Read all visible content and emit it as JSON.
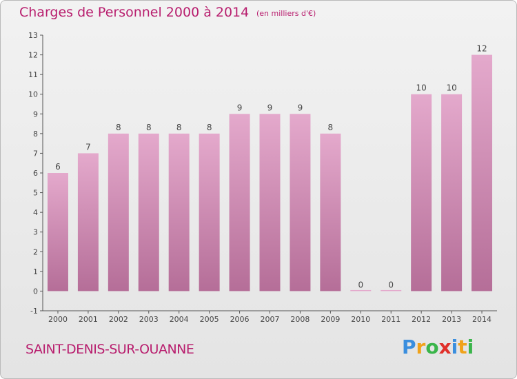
{
  "title": "Charges de Personnel 2000 à 2014",
  "subtitle": "(en milliers d'€)",
  "commune": "SAINT-DENIS-SUR-OUANNE",
  "logo": {
    "letters": [
      "P",
      "r",
      "o",
      "x",
      "i",
      "t",
      "i"
    ],
    "colors": [
      "#3a8ede",
      "#f0a21a",
      "#3ab54a",
      "#e0302a",
      "#3a8ede",
      "#f0a21a",
      "#3ab54a"
    ]
  },
  "colors": {
    "bar_top": "#e4a9cc",
    "bar_bottom": "#b56e98",
    "title": "#b81e6e"
  },
  "chart_data": {
    "type": "bar",
    "categories": [
      "2000",
      "2001",
      "2002",
      "2003",
      "2004",
      "2005",
      "2006",
      "2007",
      "2008",
      "2009",
      "2010",
      "2011",
      "2012",
      "2013",
      "2014"
    ],
    "values": [
      6,
      7,
      8,
      8,
      8,
      8,
      9,
      9,
      9,
      8,
      0,
      0,
      10,
      10,
      12
    ],
    "value_labels": [
      "6",
      "7",
      "8",
      "8",
      "8",
      "8",
      "9",
      "9",
      "9",
      "8",
      "0",
      "0",
      "10",
      "10",
      "12"
    ],
    "y_ticks": [
      "-1",
      "0",
      "1",
      "2",
      "3",
      "4",
      "5",
      "6",
      "7",
      "8",
      "9",
      "10",
      "11",
      "12",
      "13"
    ],
    "ylim": [
      -1,
      13
    ],
    "grid": false
  }
}
